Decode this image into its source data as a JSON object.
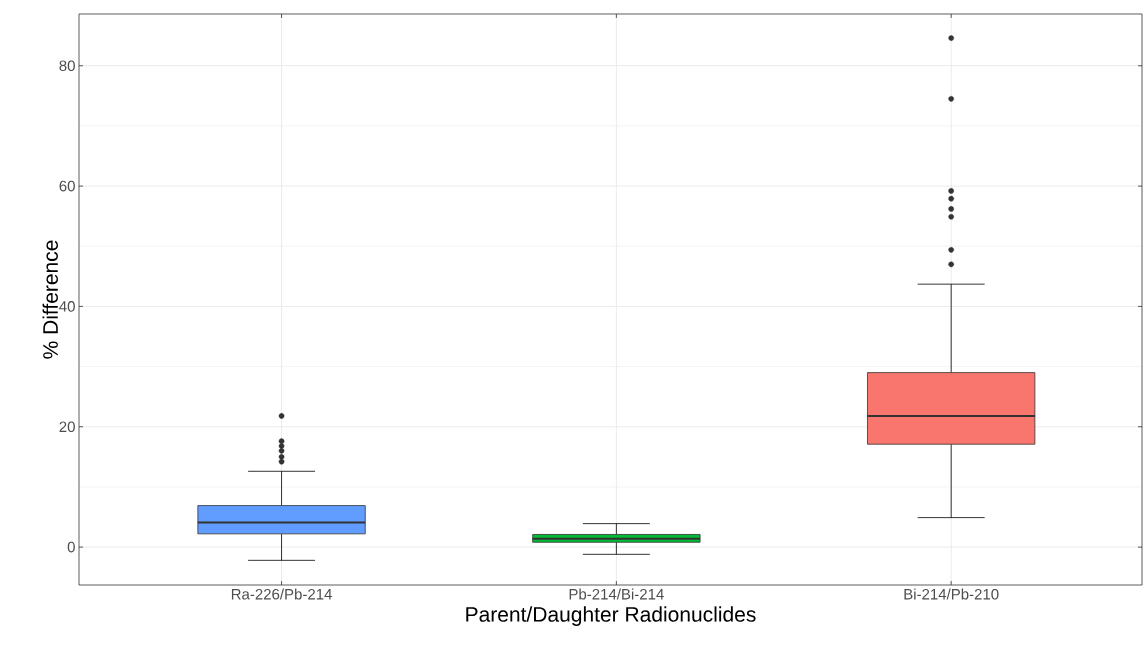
{
  "chart_data": {
    "type": "box",
    "xlabel": "Parent/Daughter Radionuclides",
    "ylabel": "% Difference",
    "categories": [
      "Ra-226/Pb-214",
      "Pb-214/Bi-214",
      "Bi-214/Pb-210"
    ],
    "colors": [
      "#619cff",
      "#00ba38",
      "#f8766d"
    ],
    "boxes": [
      {
        "low": -2.2,
        "q1": 2.2,
        "median": 4.1,
        "q3": 6.9,
        "high": 12.6,
        "outliers": [
          14.2,
          15.0,
          16.0,
          16.8,
          17.6,
          21.8
        ]
      },
      {
        "low": -1.2,
        "q1": 0.8,
        "median": 1.4,
        "q3": 2.1,
        "high": 3.9
      },
      {
        "low": 4.9,
        "q1": 17.1,
        "median": 21.8,
        "q3": 29.0,
        "high": 43.7,
        "outliers": [
          47.0,
          49.4,
          54.9,
          56.2,
          57.9,
          59.2,
          74.5,
          84.6
        ]
      }
    ],
    "ylim": [
      -6.3,
      88.6
    ],
    "yticks": [
      0,
      20,
      40,
      60,
      80
    ],
    "grid": true
  }
}
